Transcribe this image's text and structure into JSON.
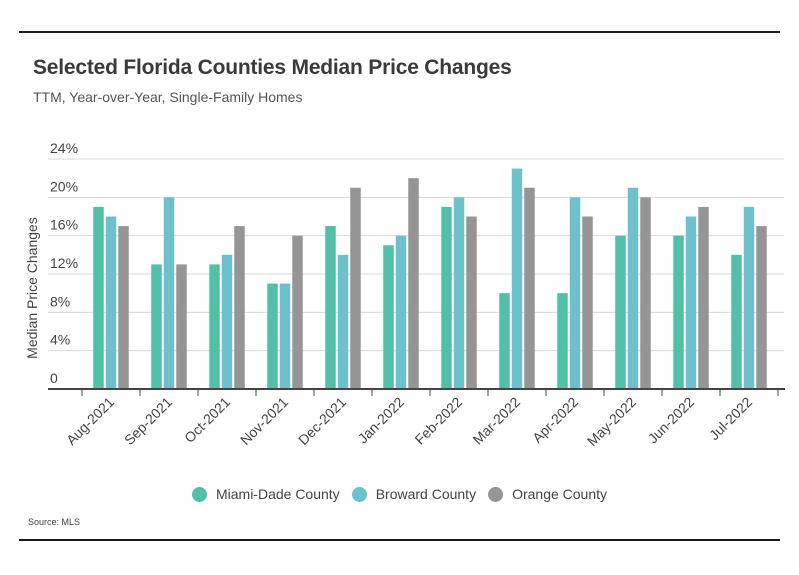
{
  "chart_data": {
    "type": "bar",
    "title": "Selected Florida Counties Median Price Changes",
    "subtitle": "TTM, Year-over-Year, Single-Family Homes",
    "xlabel": "",
    "ylabel": "Median Price Changes",
    "ylim": [
      0,
      24
    ],
    "yticks": [
      0,
      4,
      8,
      12,
      16,
      20,
      24
    ],
    "ytick_labels": [
      "0",
      "4%",
      "8%",
      "12%",
      "16%",
      "20%",
      "24%"
    ],
    "grid": true,
    "legend_position": "bottom-center",
    "categories": [
      "Aug-2021",
      "Sep-2021",
      "Oct-2021",
      "Nov-2021",
      "Dec-2021",
      "Jan-2022",
      "Feb-2022",
      "Mar-2022",
      "Apr-2022",
      "May-2022",
      "Jun-2022",
      "Jul-2022"
    ],
    "series": [
      {
        "name": "Miami-Dade County",
        "color": "#52bfa9",
        "values": [
          19,
          13,
          13,
          11,
          17,
          15,
          19,
          10,
          10,
          16,
          16,
          14
        ]
      },
      {
        "name": "Broward County",
        "color": "#6cc1cc",
        "values": [
          18,
          20,
          14,
          11,
          14,
          16,
          20,
          23,
          20,
          21,
          18,
          19
        ]
      },
      {
        "name": "Orange County",
        "color": "#959595",
        "values": [
          17,
          13,
          17,
          16,
          21,
          22,
          18,
          21,
          18,
          20,
          19,
          17
        ]
      }
    ],
    "source": "Source:  MLS"
  }
}
